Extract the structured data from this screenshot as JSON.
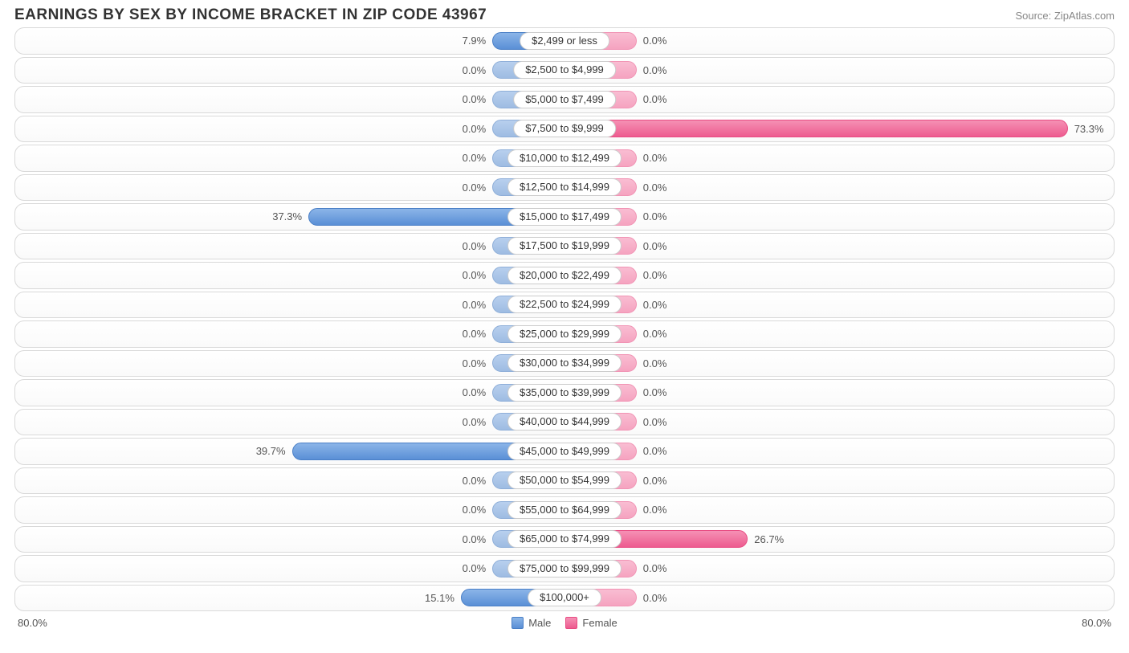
{
  "title": "EARNINGS BY SEX BY INCOME BRACKET IN ZIP CODE 43967",
  "source": "Source: ZipAtlas.com",
  "axis_max_pct": 80.0,
  "axis_left_label": "80.0%",
  "axis_right_label": "80.0%",
  "min_bar_pct": 10.5,
  "legend": {
    "male": "Male",
    "female": "Female"
  },
  "colors": {
    "male_top": "#8bb5e8",
    "male_bottom": "#5a8fd6",
    "male_dim_top": "#b8d0ee",
    "male_dim_bottom": "#9ebce2",
    "female_top": "#f590b4",
    "female_bottom": "#ed5b8f",
    "female_dim_top": "#f9bdd2",
    "female_dim_bottom": "#f5a3c0",
    "row_border": "#d9d9d9",
    "text": "#555555",
    "title_text": "#333333"
  },
  "rows": [
    {
      "label": "$2,499 or less",
      "male": 7.9,
      "female": 0.0
    },
    {
      "label": "$2,500 to $4,999",
      "male": 0.0,
      "female": 0.0
    },
    {
      "label": "$5,000 to $7,499",
      "male": 0.0,
      "female": 0.0
    },
    {
      "label": "$7,500 to $9,999",
      "male": 0.0,
      "female": 73.3
    },
    {
      "label": "$10,000 to $12,499",
      "male": 0.0,
      "female": 0.0
    },
    {
      "label": "$12,500 to $14,999",
      "male": 0.0,
      "female": 0.0
    },
    {
      "label": "$15,000 to $17,499",
      "male": 37.3,
      "female": 0.0
    },
    {
      "label": "$17,500 to $19,999",
      "male": 0.0,
      "female": 0.0
    },
    {
      "label": "$20,000 to $22,499",
      "male": 0.0,
      "female": 0.0
    },
    {
      "label": "$22,500 to $24,999",
      "male": 0.0,
      "female": 0.0
    },
    {
      "label": "$25,000 to $29,999",
      "male": 0.0,
      "female": 0.0
    },
    {
      "label": "$30,000 to $34,999",
      "male": 0.0,
      "female": 0.0
    },
    {
      "label": "$35,000 to $39,999",
      "male": 0.0,
      "female": 0.0
    },
    {
      "label": "$40,000 to $44,999",
      "male": 0.0,
      "female": 0.0
    },
    {
      "label": "$45,000 to $49,999",
      "male": 39.7,
      "female": 0.0
    },
    {
      "label": "$50,000 to $54,999",
      "male": 0.0,
      "female": 0.0
    },
    {
      "label": "$55,000 to $64,999",
      "male": 0.0,
      "female": 0.0
    },
    {
      "label": "$65,000 to $74,999",
      "male": 0.0,
      "female": 26.7
    },
    {
      "label": "$75,000 to $99,999",
      "male": 0.0,
      "female": 0.0
    },
    {
      "label": "$100,000+",
      "male": 15.1,
      "female": 0.0
    }
  ]
}
